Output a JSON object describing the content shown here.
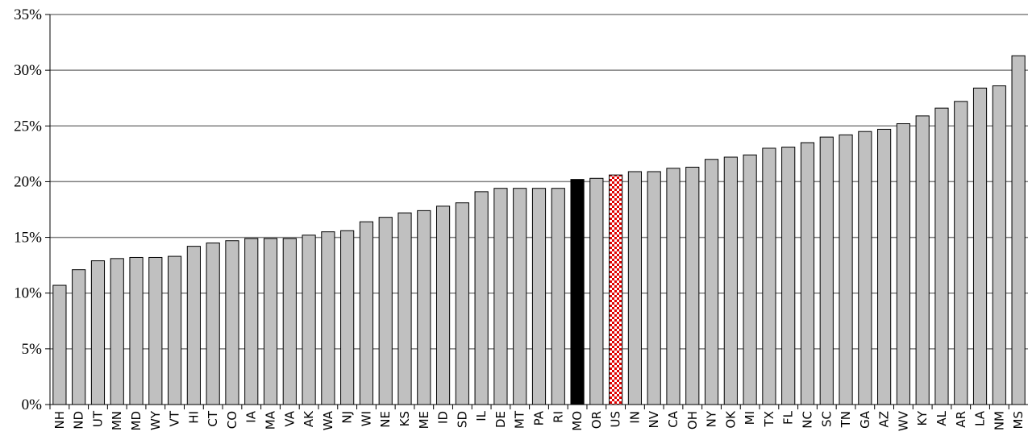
{
  "chart_data": {
    "type": "bar",
    "categories": [
      "NH",
      "ND",
      "UT",
      "MN",
      "MD",
      "WY",
      "VT",
      "HI",
      "CT",
      "CO",
      "IA",
      "MA",
      "VA",
      "AK",
      "WA",
      "NJ",
      "WI",
      "NE",
      "KS",
      "ME",
      "ID",
      "SD",
      "IL",
      "DE",
      "MT",
      "PA",
      "RI",
      "MO",
      "OR",
      "US",
      "IN",
      "NV",
      "CA",
      "OH",
      "NY",
      "OK",
      "MI",
      "TX",
      "FL",
      "NC",
      "SC",
      "TN",
      "GA",
      "AZ",
      "WV",
      "KY",
      "AL",
      "AR",
      "LA",
      "NM",
      "MS"
    ],
    "values": [
      10.7,
      12.1,
      12.9,
      13.1,
      13.2,
      13.2,
      13.3,
      14.2,
      14.5,
      14.7,
      14.9,
      14.9,
      14.9,
      15.2,
      15.5,
      15.6,
      16.4,
      16.8,
      17.2,
      17.4,
      17.8,
      18.1,
      19.1,
      19.4,
      19.4,
      19.4,
      19.4,
      20.2,
      20.3,
      20.6,
      20.9,
      20.9,
      21.2,
      21.3,
      22.0,
      22.2,
      22.4,
      23.0,
      23.1,
      23.5,
      24.0,
      24.2,
      24.5,
      24.7,
      25.2,
      25.9,
      26.6,
      27.2,
      28.4,
      28.6,
      31.3
    ],
    "highlight": {
      "MO": "black",
      "US": "checkered-red"
    },
    "bar_color": "#c0c0c0",
    "bar_border": "#000000",
    "grid_color": "#808080",
    "ylim": [
      0,
      35
    ],
    "yticks": [
      0,
      5,
      10,
      15,
      20,
      25,
      30,
      35
    ],
    "ytick_labels": [
      "0%",
      "5%",
      "10%",
      "15%",
      "20%",
      "25%",
      "30%",
      "35%"
    ],
    "grid": true,
    "title": "",
    "xlabel": "",
    "ylabel": ""
  }
}
